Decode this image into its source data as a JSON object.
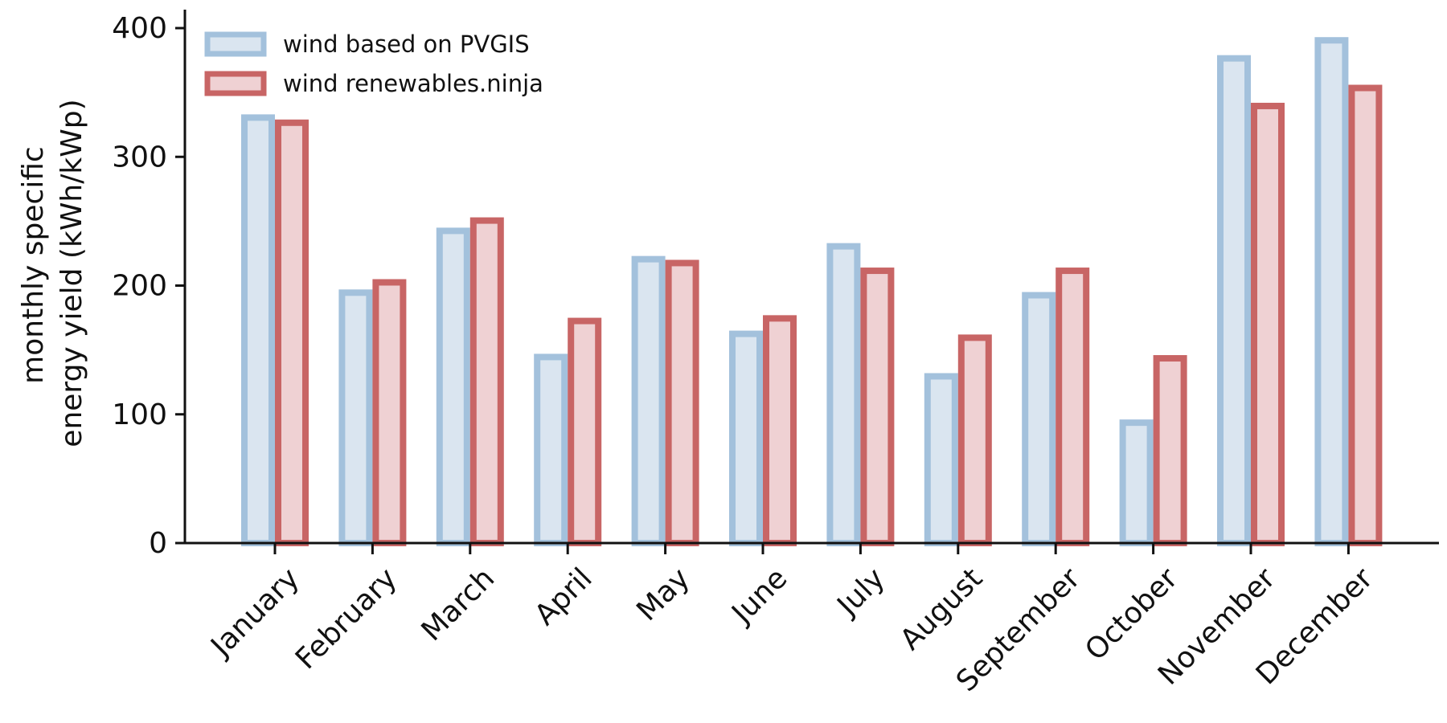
{
  "chart_data": {
    "type": "bar",
    "categories": [
      "January",
      "February",
      "March",
      "April",
      "May",
      "June",
      "July",
      "August",
      "September",
      "October",
      "November",
      "December"
    ],
    "series": [
      {
        "name": "wind based on PVGIS",
        "values": [
          333,
          197,
          245,
          147,
          223,
          165,
          233,
          132,
          195,
          96,
          379,
          393
        ],
        "fill": "#dae5f0",
        "stroke": "#a3c1dc"
      },
      {
        "name": "wind renewables.ninja",
        "values": [
          329,
          205,
          253,
          175,
          220,
          177,
          214,
          162,
          214,
          146,
          342,
          356
        ],
        "fill": "#efd1d3",
        "stroke": "#c86565"
      }
    ],
    "ylabel_lines": [
      "monthly specific",
      "energy yield (kWh/kWp)"
    ],
    "xlabel": "",
    "ylim": [
      0,
      400
    ],
    "yticks": [
      0,
      100,
      200,
      300,
      400
    ],
    "legend_position": "top-left",
    "grid": false
  }
}
